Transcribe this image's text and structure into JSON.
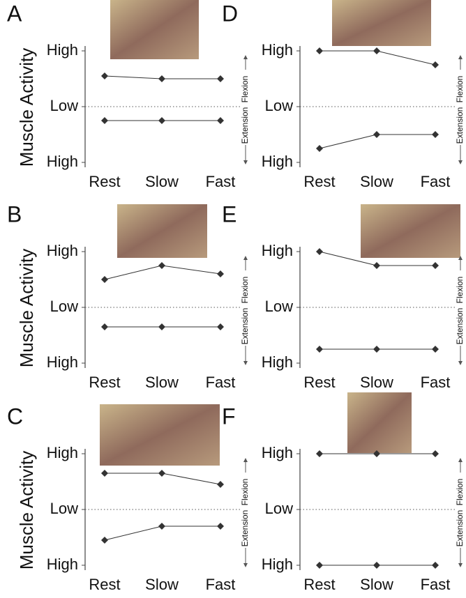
{
  "chart_data": [
    {
      "type": "line",
      "label": "A",
      "ylabel": "Muscle Activity",
      "flexion_label": "Flexion",
      "extension_label": "Extension",
      "categories": [
        "Rest",
        "Slow",
        "Fast"
      ],
      "ylim": [
        -1,
        1
      ],
      "yticks": [
        {
          "value": 1,
          "label": "High"
        },
        {
          "value": 0,
          "label": "Low"
        },
        {
          "value": -1,
          "label": "High"
        }
      ],
      "series": [
        {
          "color": "#333333",
          "values": [
            0.55,
            0.5,
            0.5
          ]
        },
        {
          "color": "#333333",
          "values": [
            -0.25,
            -0.25,
            -0.25
          ]
        }
      ]
    },
    {
      "type": "line",
      "label": "D",
      "flexion_label": "Flexion",
      "extension_label": "Extension",
      "categories": [
        "Rest",
        "Slow",
        "Fast"
      ],
      "ylim": [
        -1,
        1
      ],
      "yticks": [
        {
          "value": 1,
          "label": "High"
        },
        {
          "value": 0,
          "label": "Low"
        },
        {
          "value": -1,
          "label": "High"
        }
      ],
      "series": [
        {
          "color": "#333333",
          "values": [
            1,
            1,
            0.75
          ]
        },
        {
          "color": "#333333",
          "values": [
            -0.75,
            -0.5,
            -0.5
          ]
        }
      ]
    },
    {
      "type": "line",
      "label": "B",
      "ylabel": "Muscle Activity",
      "flexion_label": "Flexion",
      "extension_label": "Extension",
      "categories": [
        "Rest",
        "Slow",
        "Fast"
      ],
      "ylim": [
        -1,
        1
      ],
      "yticks": [
        {
          "value": 1,
          "label": "High"
        },
        {
          "value": 0,
          "label": "Low"
        },
        {
          "value": -1,
          "label": "High"
        }
      ],
      "series": [
        {
          "color": "#333333",
          "values": [
            0.5,
            0.75,
            0.6
          ]
        },
        {
          "color": "#333333",
          "values": [
            -0.35,
            -0.35,
            -0.35
          ]
        }
      ]
    },
    {
      "type": "line",
      "label": "E",
      "flexion_label": "Flexion",
      "extension_label": "Extension",
      "categories": [
        "Rest",
        "Slow",
        "Fast"
      ],
      "ylim": [
        -1,
        1
      ],
      "yticks": [
        {
          "value": 1,
          "label": "High"
        },
        {
          "value": 0,
          "label": "Low"
        },
        {
          "value": -1,
          "label": "High"
        }
      ],
      "series": [
        {
          "color": "#333333",
          "values": [
            1,
            0.75,
            0.75
          ]
        },
        {
          "color": "#333333",
          "values": [
            -0.75,
            -0.75,
            -0.75
          ]
        }
      ]
    },
    {
      "type": "line",
      "label": "C",
      "ylabel": "Muscle Activity",
      "flexion_label": "Flexion",
      "extension_label": "Extension",
      "categories": [
        "Rest",
        "Slow",
        "Fast"
      ],
      "ylim": [
        -1,
        1
      ],
      "yticks": [
        {
          "value": 1,
          "label": "High"
        },
        {
          "value": 0,
          "label": "Low"
        },
        {
          "value": -1,
          "label": "High"
        }
      ],
      "series": [
        {
          "color": "#333333",
          "values": [
            0.65,
            0.65,
            0.45
          ]
        },
        {
          "color": "#333333",
          "values": [
            -0.55,
            -0.3,
            -0.3
          ]
        }
      ]
    },
    {
      "type": "line",
      "label": "F",
      "flexion_label": "Flexion",
      "extension_label": "Extension",
      "categories": [
        "Rest",
        "Slow",
        "Fast"
      ],
      "ylim": [
        -1,
        1
      ],
      "yticks": [
        {
          "value": 1,
          "label": "High"
        },
        {
          "value": 0,
          "label": "Low"
        },
        {
          "value": -1,
          "label": "High"
        }
      ],
      "series": [
        {
          "color": "#333333",
          "values": [
            1,
            1,
            1
          ]
        },
        {
          "color": "#333333",
          "values": [
            -1,
            -1,
            -1
          ]
        }
      ]
    }
  ]
}
